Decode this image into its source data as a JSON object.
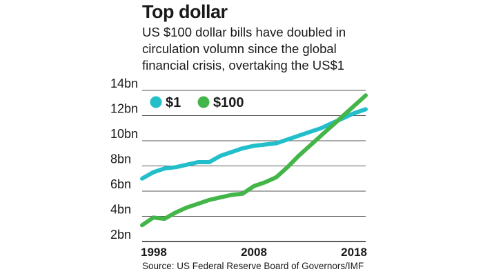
{
  "header": {
    "title": "Top dollar",
    "subtitle": "US $100 dollar bills have doubled in circulation volumn since the global financial crisis, overtaking the US$1"
  },
  "footer": {
    "source": "Source: US Federal Reserve Board of Governors/IMF"
  },
  "chart_data": {
    "type": "line",
    "title": "Top dollar",
    "xlabel": "",
    "ylabel": "",
    "xlim": [
      1998,
      2018
    ],
    "ylim": [
      2,
      14
    ],
    "grid": true,
    "legend_placement": "top-left",
    "x_ticks": [
      "1998",
      "2008",
      "2018"
    ],
    "y_ticks": [
      "2bn",
      "4bn",
      "6bn",
      "8bn",
      "10bn",
      "12bn",
      "14bn"
    ],
    "y_tick_values": [
      2,
      4,
      6,
      8,
      10,
      12,
      14
    ],
    "x": [
      1998,
      1999,
      2000,
      2001,
      2002,
      2003,
      2004,
      2005,
      2006,
      2007,
      2008,
      2009,
      2010,
      2011,
      2012,
      2013,
      2014,
      2015,
      2016,
      2017,
      2018
    ],
    "series": [
      {
        "name": "$1",
        "color": "#22bfca",
        "values": [
          7.0,
          7.5,
          7.8,
          7.9,
          8.1,
          8.3,
          8.3,
          8.8,
          9.1,
          9.4,
          9.6,
          9.7,
          9.8,
          10.1,
          10.4,
          10.7,
          11.0,
          11.4,
          11.8,
          12.2,
          12.5
        ]
      },
      {
        "name": "$100",
        "color": "#44b548",
        "values": [
          3.3,
          3.9,
          3.8,
          4.3,
          4.7,
          5.0,
          5.3,
          5.5,
          5.7,
          5.8,
          6.4,
          6.7,
          7.1,
          7.9,
          8.8,
          9.6,
          10.4,
          11.2,
          12.0,
          12.8,
          13.6
        ]
      }
    ]
  }
}
